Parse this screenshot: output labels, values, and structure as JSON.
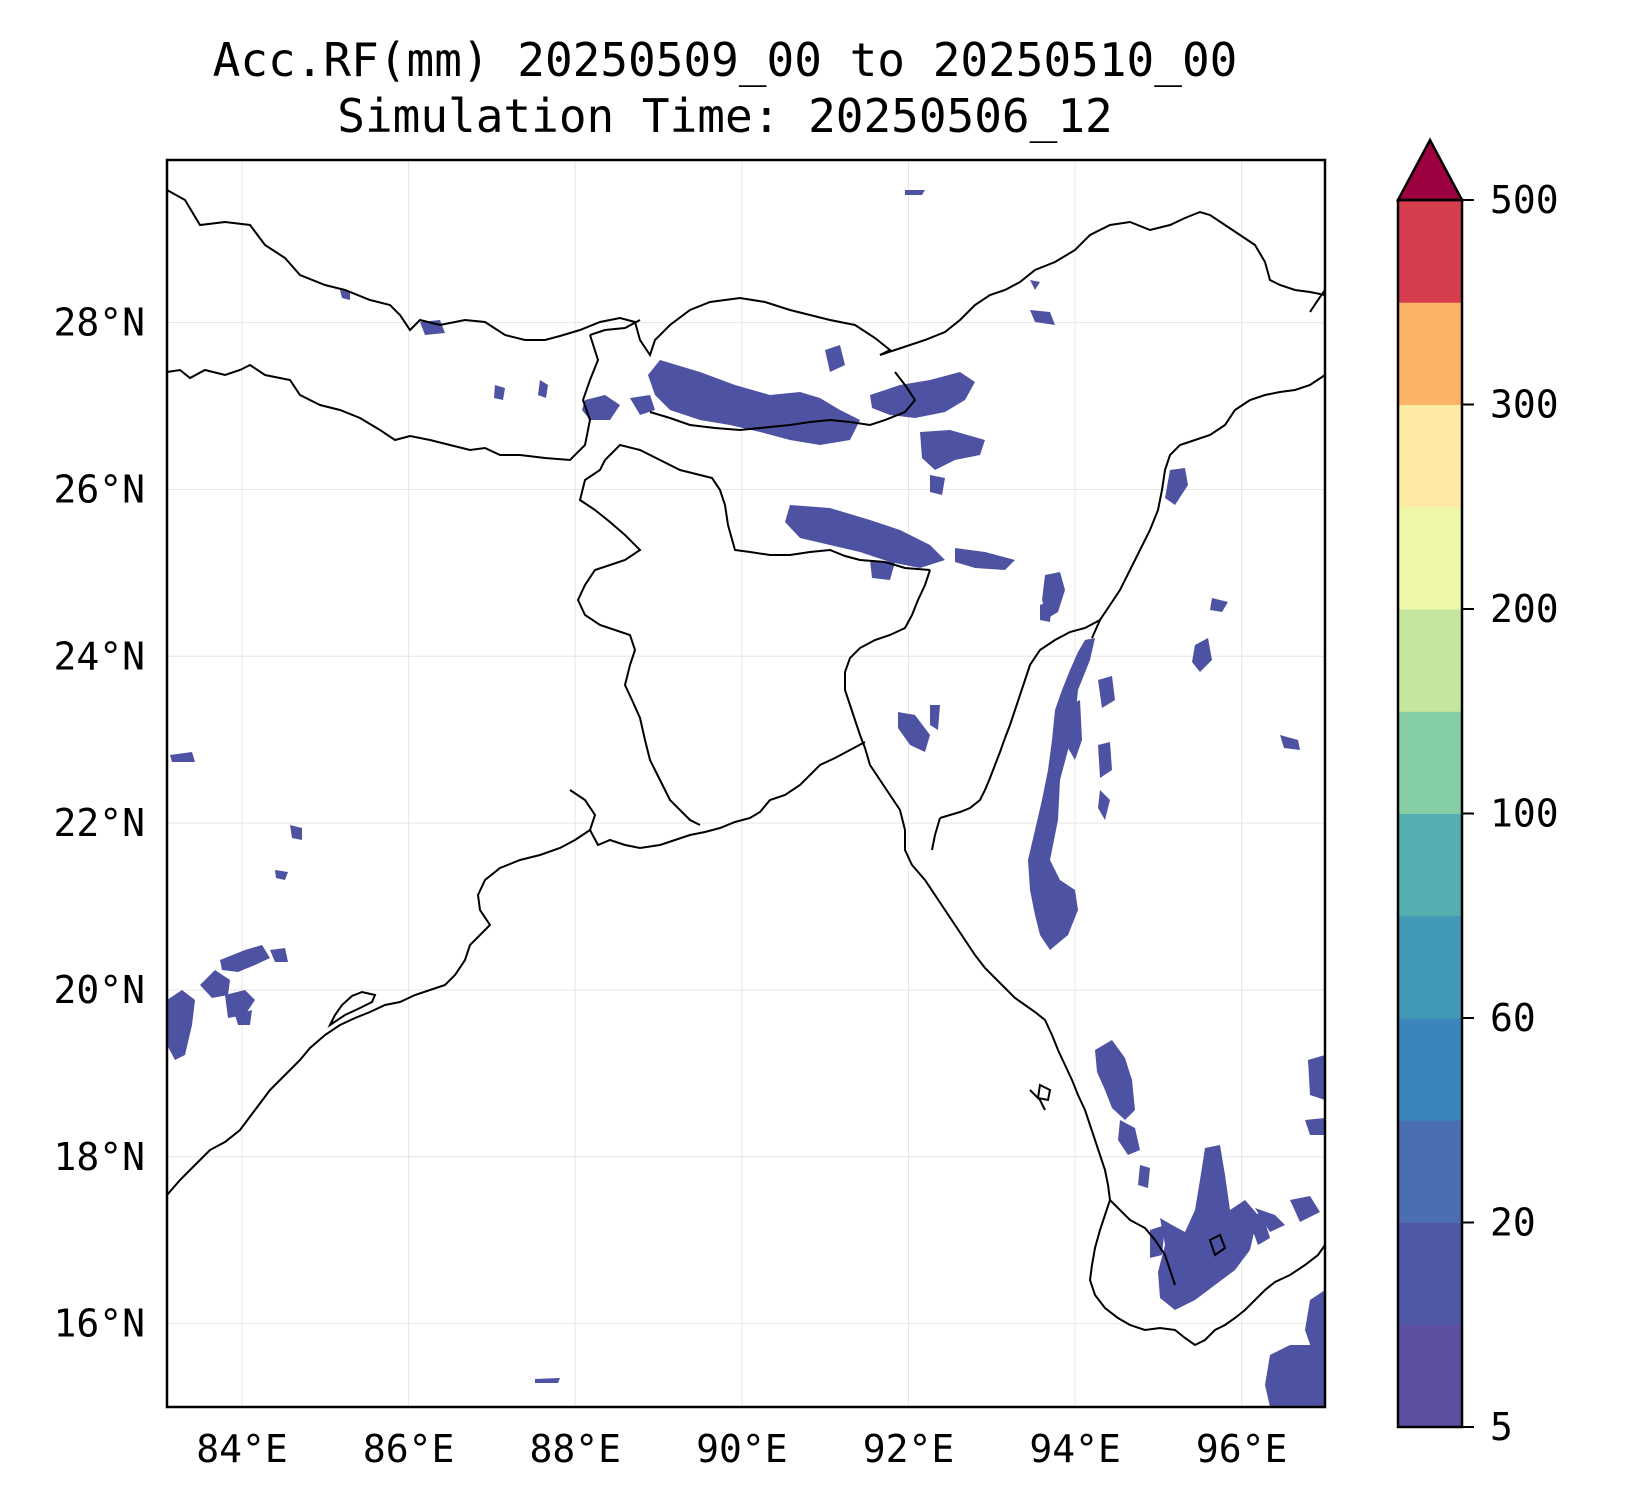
{
  "title": {
    "line1": "Acc.RF(mm) 20250509_00 to 20250510_00",
    "line2": "Simulation Time: 20250506_12"
  },
  "map": {
    "lon_range": [
      83.1,
      97.0
    ],
    "lat_range": [
      15.0,
      29.95
    ],
    "lon_ticks": [
      {
        "value": 84,
        "label": "84°E"
      },
      {
        "value": 86,
        "label": "86°E"
      },
      {
        "value": 88,
        "label": "88°E"
      },
      {
        "value": 90,
        "label": "90°E"
      },
      {
        "value": 92,
        "label": "92°E"
      },
      {
        "value": 94,
        "label": "94°E"
      },
      {
        "value": 96,
        "label": "96°E"
      }
    ],
    "lat_ticks": [
      {
        "value": 16,
        "label": "16°N"
      },
      {
        "value": 18,
        "label": "18°N"
      },
      {
        "value": 20,
        "label": "20°N"
      },
      {
        "value": 22,
        "label": "22°N"
      },
      {
        "value": 24,
        "label": "24°N"
      },
      {
        "value": 26,
        "label": "26°N"
      },
      {
        "value": 28,
        "label": "28°N"
      }
    ],
    "grid": true,
    "rain_color": "#4e52a3"
  },
  "colorbar": {
    "levels": [
      5,
      10,
      20,
      40,
      60,
      80,
      100,
      150,
      200,
      250,
      300,
      400,
      500
    ],
    "colors": [
      "#5e4fa2",
      "#4f57a6",
      "#4b6db1",
      "#3a85bc",
      "#4299b6",
      "#55aeaf",
      "#86cfa5",
      "#c6e69f",
      "#eef7a8",
      "#feeaa3",
      "#fdb366",
      "#d53e4f"
    ],
    "extend_color": "#9e0142",
    "tick_labels": [
      {
        "level_index": 0,
        "label": "5"
      },
      {
        "level_index": 2,
        "label": "20"
      },
      {
        "level_index": 4,
        "label": "60"
      },
      {
        "level_index": 6,
        "label": "100"
      },
      {
        "level_index": 8,
        "label": "200"
      },
      {
        "level_index": 10,
        "label": "300"
      },
      {
        "level_index": 12,
        "label": "500"
      }
    ]
  }
}
